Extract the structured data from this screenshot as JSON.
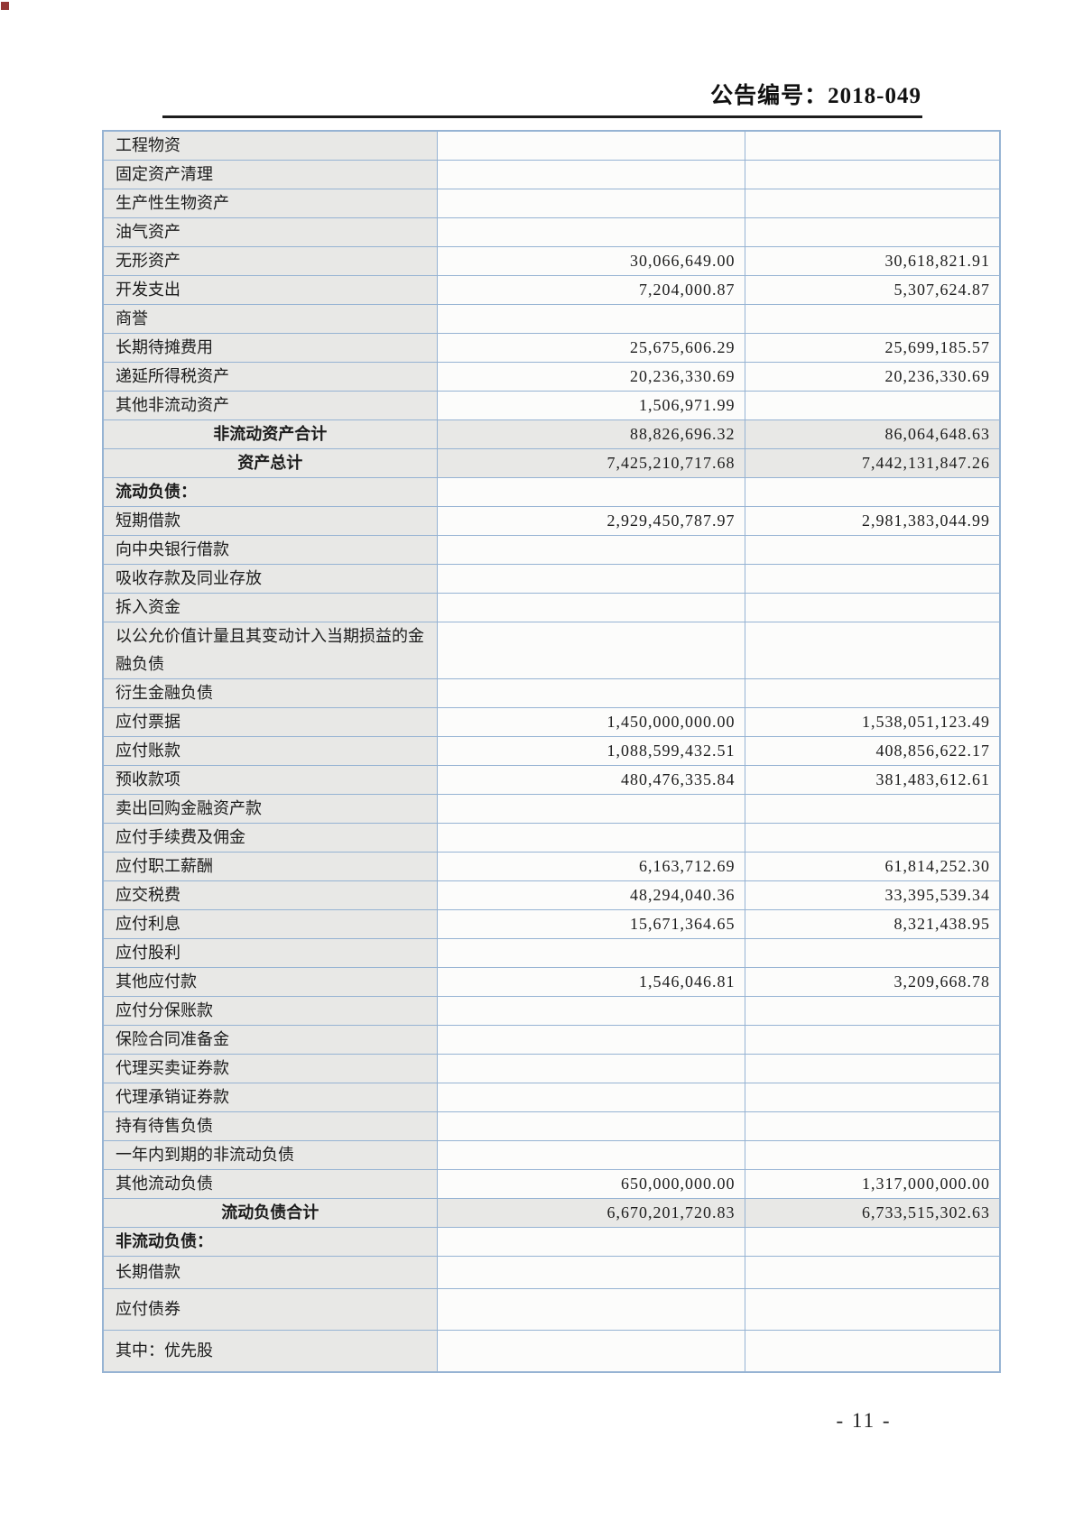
{
  "page": {
    "header": {
      "doc_number": "公告编号：2018-049"
    },
    "footer": {
      "page_number": "- 11 -"
    }
  },
  "colors": {
    "table_border": "#96b3d3",
    "label_cell_bg": "#e8e8e6",
    "value_cell_bg": "#fcfcfb",
    "corner_mark": "#943634"
  },
  "table": {
    "rows": [
      {
        "label": "工程物资",
        "value1": "",
        "value2": "",
        "kind": "item"
      },
      {
        "label": "固定资产清理",
        "value1": "",
        "value2": "",
        "kind": "item"
      },
      {
        "label": "生产性生物资产",
        "value1": "",
        "value2": "",
        "kind": "item"
      },
      {
        "label": "油气资产",
        "value1": "",
        "value2": "",
        "kind": "item"
      },
      {
        "label": "无形资产",
        "value1": "30,066,649.00",
        "value2": "30,618,821.91",
        "kind": "item"
      },
      {
        "label": "开发支出",
        "value1": "7,204,000.87",
        "value2": "5,307,624.87",
        "kind": "item"
      },
      {
        "label": "商誉",
        "value1": "",
        "value2": "",
        "kind": "item"
      },
      {
        "label": "长期待摊费用",
        "value1": "25,675,606.29",
        "value2": "25,699,185.57",
        "kind": "item"
      },
      {
        "label": "递延所得税资产",
        "value1": "20,236,330.69",
        "value2": "20,236,330.69",
        "kind": "item"
      },
      {
        "label": "其他非流动资产",
        "value1": "1,506,971.99",
        "value2": "",
        "kind": "item"
      },
      {
        "label": "非流动资产合计",
        "value1": "88,826,696.32",
        "value2": "86,064,648.63",
        "kind": "total"
      },
      {
        "label": "资产总计",
        "value1": "7,425,210,717.68",
        "value2": "7,442,131,847.26",
        "kind": "total"
      },
      {
        "label": "流动负债：",
        "value1": "",
        "value2": "",
        "kind": "section"
      },
      {
        "label": "短期借款",
        "value1": "2,929,450,787.97",
        "value2": "2,981,383,044.99",
        "kind": "item"
      },
      {
        "label": "向中央银行借款",
        "value1": "",
        "value2": "",
        "kind": "item"
      },
      {
        "label": "吸收存款及同业存放",
        "value1": "",
        "value2": "",
        "kind": "item"
      },
      {
        "label": "拆入资金",
        "value1": "",
        "value2": "",
        "kind": "item"
      },
      {
        "label": "以公允价值计量且其变动计入当期损益的金融负债",
        "value1": "",
        "value2": "",
        "kind": "item"
      },
      {
        "label": "衍生金融负债",
        "value1": "",
        "value2": "",
        "kind": "item"
      },
      {
        "label": "应付票据",
        "value1": "1,450,000,000.00",
        "value2": "1,538,051,123.49",
        "kind": "item"
      },
      {
        "label": "应付账款",
        "value1": "1,088,599,432.51",
        "value2": "408,856,622.17",
        "kind": "item"
      },
      {
        "label": "预收款项",
        "value1": "480,476,335.84",
        "value2": "381,483,612.61",
        "kind": "item"
      },
      {
        "label": "卖出回购金融资产款",
        "value1": "",
        "value2": "",
        "kind": "item"
      },
      {
        "label": "应付手续费及佣金",
        "value1": "",
        "value2": "",
        "kind": "item"
      },
      {
        "label": "应付职工薪酬",
        "value1": "6,163,712.69",
        "value2": "61,814,252.30",
        "kind": "item"
      },
      {
        "label": "应交税费",
        "value1": "48,294,040.36",
        "value2": "33,395,539.34",
        "kind": "item"
      },
      {
        "label": "应付利息",
        "value1": "15,671,364.65",
        "value2": "8,321,438.95",
        "kind": "item"
      },
      {
        "label": "应付股利",
        "value1": "",
        "value2": "",
        "kind": "item"
      },
      {
        "label": "其他应付款",
        "value1": "1,546,046.81",
        "value2": "3,209,668.78",
        "kind": "item"
      },
      {
        "label": "应付分保账款",
        "value1": "",
        "value2": "",
        "kind": "item"
      },
      {
        "label": "保险合同准备金",
        "value1": "",
        "value2": "",
        "kind": "item"
      },
      {
        "label": "代理买卖证券款",
        "value1": "",
        "value2": "",
        "kind": "item"
      },
      {
        "label": "代理承销证券款",
        "value1": "",
        "value2": "",
        "kind": "item"
      },
      {
        "label": "持有待售负债",
        "value1": "",
        "value2": "",
        "kind": "item"
      },
      {
        "label": "一年内到期的非流动负债",
        "value1": "",
        "value2": "",
        "kind": "item"
      },
      {
        "label": "其他流动负债",
        "value1": "650,000,000.00",
        "value2": "1,317,000,000.00",
        "kind": "item"
      },
      {
        "label": "流动负债合计",
        "value1": "6,670,201,720.83",
        "value2": "6,733,515,302.63",
        "kind": "total"
      },
      {
        "label": "非流动负债：",
        "value1": "",
        "value2": "",
        "kind": "section"
      },
      {
        "label": "长期借款",
        "value1": "",
        "value2": "",
        "kind": "item"
      },
      {
        "label": "应付债券",
        "value1": "",
        "value2": "",
        "kind": "item"
      },
      {
        "label": "其中：优先股",
        "value1": "",
        "value2": "",
        "kind": "item"
      }
    ]
  }
}
